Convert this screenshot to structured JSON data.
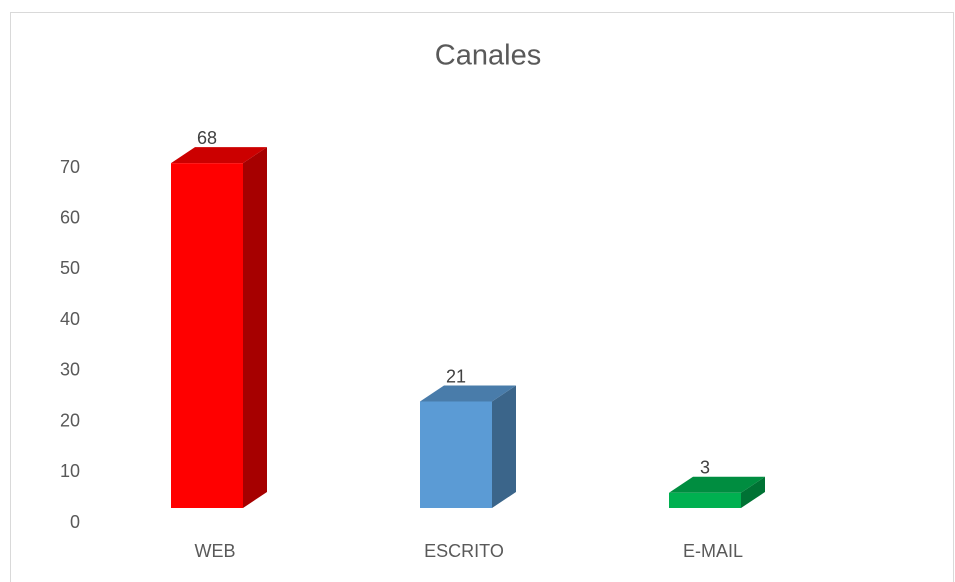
{
  "chart_data": {
    "type": "bar3d",
    "title": "Canales",
    "categories": [
      "WEB",
      "ESCRITO",
      "E-MAIL"
    ],
    "values": [
      68,
      21,
      3
    ],
    "colors": [
      "#ff0000",
      "#5b9bd5",
      "#00b050"
    ],
    "ylim": [
      0,
      70
    ],
    "yticks": [
      0,
      10,
      20,
      30,
      40,
      50,
      60,
      70
    ],
    "grid": false
  }
}
